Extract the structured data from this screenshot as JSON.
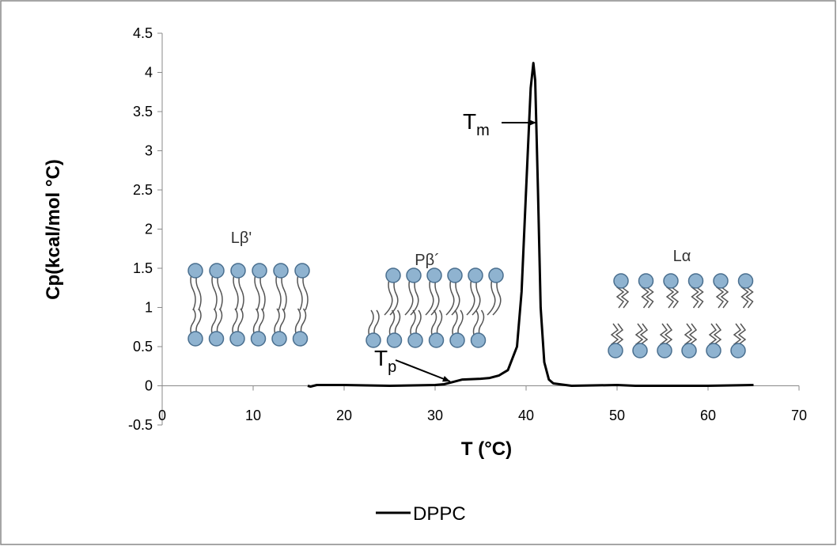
{
  "chart_data": {
    "type": "line",
    "xlabel": "T (°C)",
    "ylabel": "Cp(kcal/mol °C)",
    "series": [
      {
        "name": "DPPC",
        "color": "#000000",
        "x": [
          16,
          16.3,
          17,
          20,
          25,
          30,
          31,
          32,
          33,
          35,
          36,
          37,
          38,
          39,
          39.5,
          40,
          40.5,
          40.8,
          41,
          41.3,
          41.6,
          42,
          42.5,
          43,
          45,
          50,
          52,
          55,
          60,
          65
        ],
        "values": [
          0,
          -0.01,
          0.01,
          0.01,
          0,
          0.01,
          0.02,
          0.05,
          0.08,
          0.09,
          0.1,
          0.13,
          0.2,
          0.5,
          1.2,
          2.5,
          3.8,
          4.12,
          3.9,
          2.5,
          1.0,
          0.3,
          0.08,
          0.03,
          0,
          0.01,
          0,
          0,
          0,
          0.01
        ]
      }
    ],
    "xlim": [
      0,
      70
    ],
    "xticks": [
      0,
      10,
      20,
      30,
      40,
      50,
      60,
      70
    ],
    "ylim": [
      -0.5,
      4.5
    ],
    "yticks": [
      -0.5,
      0,
      0.5,
      1,
      1.5,
      2,
      2.5,
      3,
      3.5,
      4,
      4.5
    ],
    "legend": "bottom",
    "annotations": [
      {
        "text": "T",
        "sub": "m"
      },
      {
        "text": "T",
        "sub": "p"
      }
    ],
    "phase_labels": [
      "Lβ'",
      "Pβ´",
      "Lα"
    ]
  }
}
